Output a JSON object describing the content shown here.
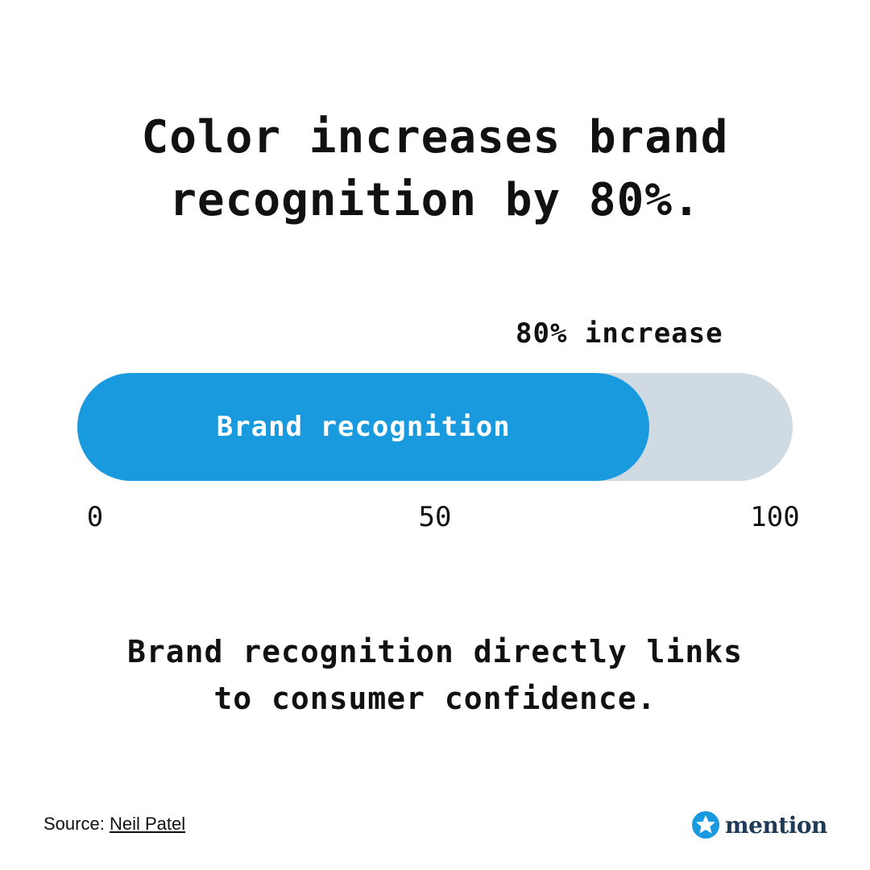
{
  "headline": [
    "Color increases brand",
    "recognition by 80%."
  ],
  "chart_data": {
    "type": "bar",
    "orientation": "horizontal",
    "categories": [
      "Brand recognition"
    ],
    "values": [
      80
    ],
    "xlim": [
      0,
      100
    ],
    "ticks": [
      "0",
      "50",
      "100"
    ],
    "annotation": "80% increase",
    "bar_color": "#1a9ade",
    "track_color": "#cfdae3"
  },
  "subhead": [
    "Brand recognition directly links",
    "to consumer confidence."
  ],
  "source": {
    "label": "Source:",
    "link_text": "Neil Patel"
  },
  "brand": {
    "name": "mention",
    "icon": "star-badge-icon",
    "color": "#1f3a57",
    "icon_color": "#1a9ade"
  }
}
